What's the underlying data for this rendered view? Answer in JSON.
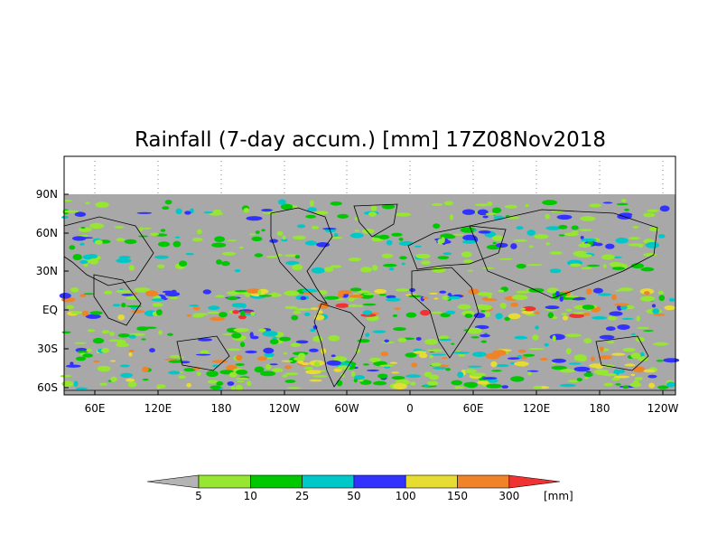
{
  "map": {
    "title": "Rainfall (7-day accum.) [mm] 17Z08Nov2018",
    "lat_ticks": [
      "90N",
      "60N",
      "30N",
      "EQ",
      "30S",
      "60S"
    ],
    "lon_ticks": [
      "60E",
      "120E",
      "180",
      "120W",
      "60W",
      "0",
      "60E",
      "120E",
      "180",
      "120W"
    ],
    "background_color": "#a8a8a8",
    "land_outline_color": "#000000"
  },
  "colorbar": {
    "unit": "[mm]",
    "levels": [
      "5",
      "10",
      "25",
      "50",
      "100",
      "150",
      "300"
    ],
    "colors": [
      "#b4b4b4",
      "#96e632",
      "#00c800",
      "#00c8c8",
      "#3232ff",
      "#e6dc32",
      "#f08228",
      "#f03232"
    ]
  }
}
